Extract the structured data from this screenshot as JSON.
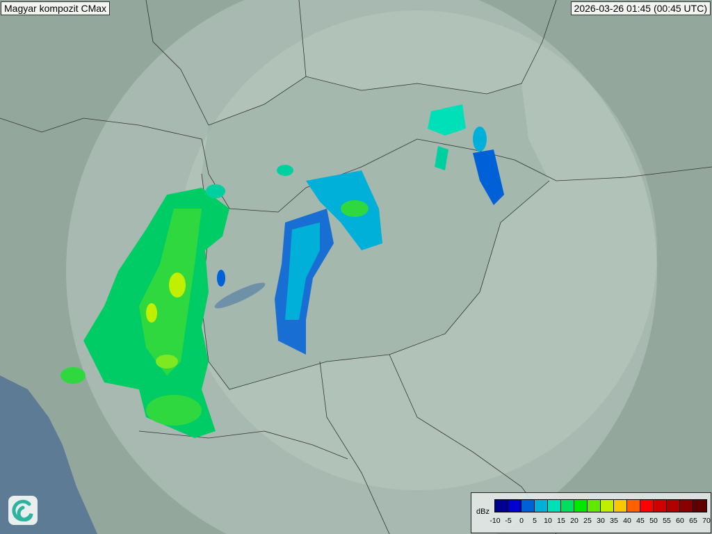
{
  "header": {
    "title": "Magyar kompozit  CMax",
    "timestamp": "2026-03-26 01:45 (00:45 UTC)"
  },
  "logo": {
    "icon": "swirl-logo-icon"
  },
  "legend": {
    "unit": "dBz",
    "ticks": [
      "-10",
      "-5",
      "0",
      "5",
      "10",
      "15",
      "20",
      "25",
      "30",
      "35",
      "40",
      "45",
      "50",
      "55",
      "60",
      "65",
      "70"
    ],
    "colors": [
      "#000090",
      "#0000d0",
      "#0060d8",
      "#00b0d8",
      "#00e0b8",
      "#00e060",
      "#00e800",
      "#60e800",
      "#c0f000",
      "#f8c800",
      "#ff6000",
      "#ff0000",
      "#d00000",
      "#b00000",
      "#880000",
      "#600000"
    ]
  }
}
